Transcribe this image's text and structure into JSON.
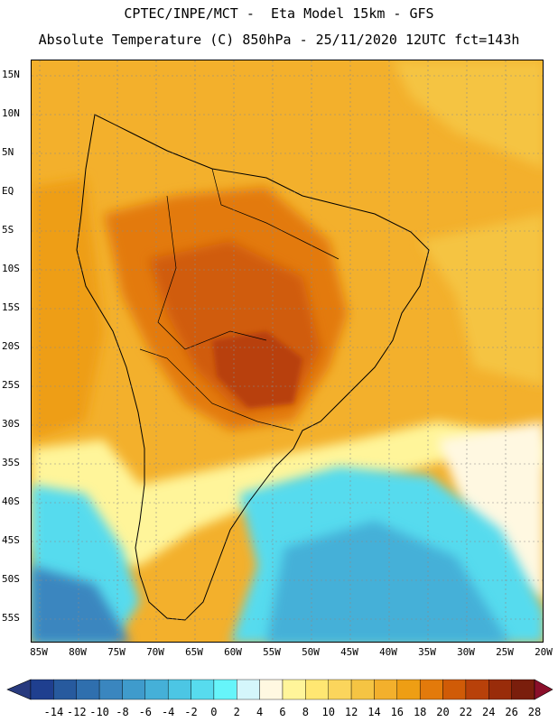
{
  "header": {
    "line1": "CPTEC/INPE/MCT -  Eta Model 15km - GFS",
    "line2": "Absolute Temperature (C) 850hPa - 25/11/2020 12UTC fct=143h"
  },
  "lat_labels": [
    "15N",
    "10N",
    "5N",
    "EQ",
    "5S",
    "10S",
    "15S",
    "20S",
    "25S",
    "30S",
    "35S",
    "40S",
    "45S",
    "50S",
    "55S"
  ],
  "lon_labels": [
    "85W",
    "80W",
    "75W",
    "70W",
    "65W",
    "60W",
    "55W",
    "50W",
    "45W",
    "40W",
    "35W",
    "30W",
    "25W",
    "20W"
  ],
  "colorbar": {
    "labels": [
      "-14",
      "-12",
      "-10",
      "-8",
      "-6",
      "-4",
      "-2",
      "0",
      "2",
      "4",
      "6",
      "8",
      "10",
      "12",
      "14",
      "16",
      "18",
      "20",
      "22",
      "24",
      "26",
      "28"
    ],
    "colors": [
      "#1f3f8f",
      "#275a9e",
      "#2f6fae",
      "#3a86bf",
      "#3f9bcc",
      "#45b0d8",
      "#4cc6e4",
      "#57dbee",
      "#66f5fa",
      "#d4f6fb",
      "#fff8e1",
      "#fff59a",
      "#ffe772",
      "#fbd55c",
      "#f5c443",
      "#f3b02c",
      "#ee9e14",
      "#e37a0b",
      "#d05b07",
      "#b8410a",
      "#992c0a",
      "#7a1e0c"
    ]
  }
}
